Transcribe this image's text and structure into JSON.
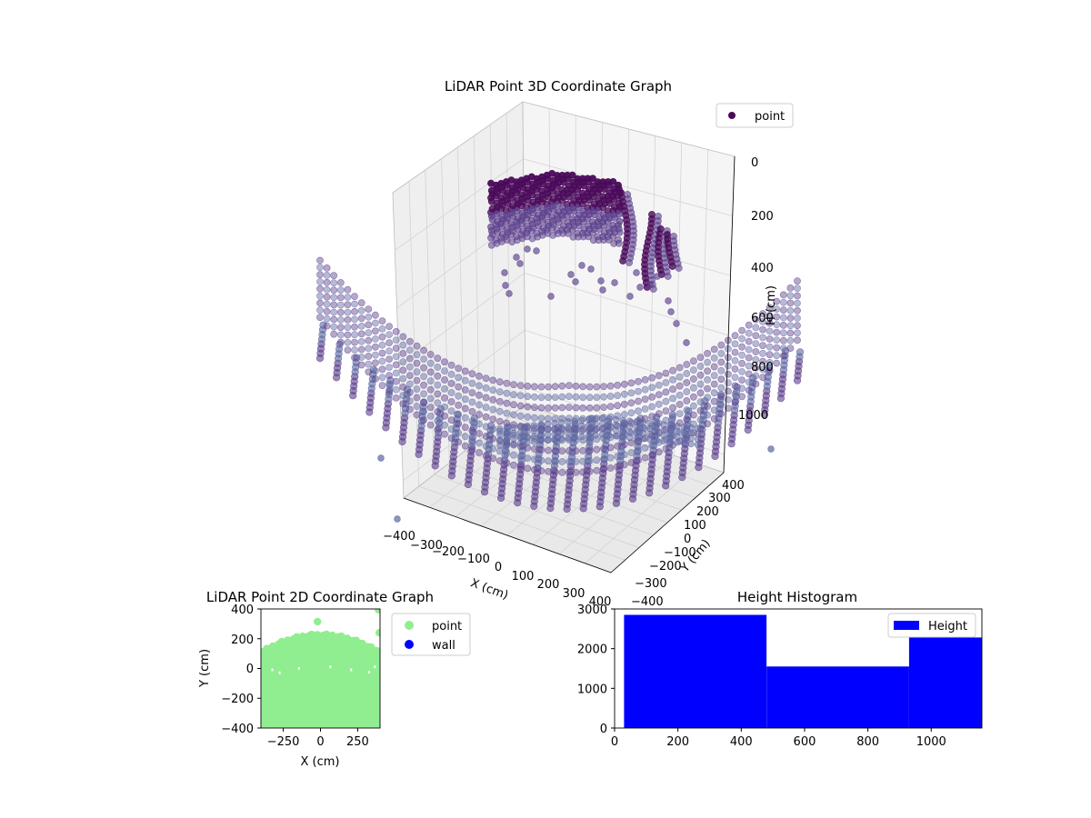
{
  "colors": {
    "point3d_top": "#4a0a5a",
    "point3d_mid": "#5b3f8c",
    "point3d_low": "#5e67a1",
    "point2d": "#90ee90",
    "wall": "#0000ff",
    "hist": "#0000ff",
    "pane": "#f2f2f2",
    "grid": "#d0d0d0"
  },
  "chart_data": [
    {
      "type": "scatter",
      "title": "LiDAR Point 3D Coordinate Graph",
      "xlabel": "X (cm)",
      "ylabel": "Y (cm)",
      "zlabel": "H (cm)",
      "x_ticks": [
        "−400",
        "−300",
        "−200",
        "−100",
        "0",
        "100",
        "200",
        "300",
        "400"
      ],
      "y_ticks": [
        "−400",
        "−300",
        "−200",
        "−100",
        "0",
        "100",
        "200",
        "300",
        "400"
      ],
      "z_ticks": [
        "0",
        "200",
        "400",
        "600",
        "800",
        "1000"
      ],
      "xlim": [
        -400,
        400
      ],
      "ylim": [
        -400,
        400
      ],
      "zlim": [
        0,
        1000
      ],
      "z_inverted": true,
      "legend": [
        "point"
      ],
      "legend_position": "top-right",
      "series": [
        {
          "name": "point",
          "groups": [
            {
              "xrange": [
                -120,
                180
              ],
              "y": 150,
              "h": [
                30,
                330
              ]
            },
            {
              "xrange": [
                180,
                250
              ],
              "y": 120,
              "h": [
                100,
                450
              ]
            },
            {
              "xrange": [
                250,
                320
              ],
              "y": 60,
              "h": [
                180,
                520
              ]
            },
            {
              "xrange": [
                -400,
                400
              ],
              "y": [
                -300,
                400
              ],
              "h": [
                820,
                1050
              ]
            }
          ]
        }
      ]
    },
    {
      "type": "scatter",
      "title": "LiDAR Point 2D Coordinate Graph",
      "xlabel": "X (cm)",
      "ylabel": "Y (cm)",
      "x_ticks": [
        "−250",
        "0",
        "250"
      ],
      "y_ticks": [
        "−400",
        "−200",
        "0",
        "200",
        "400"
      ],
      "xlim": [
        -400,
        400
      ],
      "ylim": [
        -400,
        400
      ],
      "legend": [
        "point",
        "wall"
      ],
      "legend_position": "outside-right",
      "series": [
        {
          "name": "point",
          "region": {
            "x": [
              -400,
              400
            ],
            "y_top": [
              100,
              230
            ],
            "y_bottom": -400
          }
        },
        {
          "name": "wall",
          "values": []
        }
      ]
    },
    {
      "type": "bar",
      "title": "Height Histogram",
      "xlabel": "",
      "ylabel": "",
      "x_ticks": [
        "0",
        "200",
        "400",
        "600",
        "800",
        "1000"
      ],
      "y_ticks": [
        "0",
        "1000",
        "2000",
        "3000"
      ],
      "xlim": [
        0,
        1160
      ],
      "ylim": [
        0,
        3000
      ],
      "legend": [
        "Height"
      ],
      "legend_position": "top-right",
      "bins": [
        {
          "x0": 30,
          "x1": 480,
          "count": 2850
        },
        {
          "x0": 480,
          "x1": 930,
          "count": 1550
        },
        {
          "x0": 930,
          "x1": 1160,
          "count": 2280
        }
      ]
    }
  ]
}
